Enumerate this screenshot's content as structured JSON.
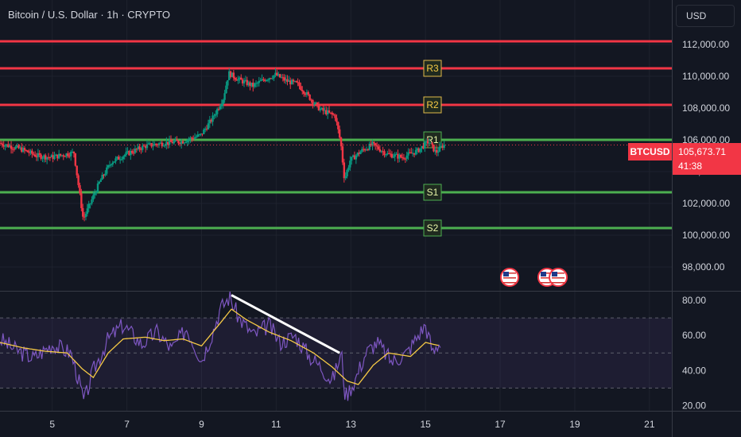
{
  "header": {
    "title": "Bitcoin / U.S. Dollar · 1h · CRYPTO",
    "currency_button": "USD"
  },
  "last_price": {
    "symbol": "BTCUSD",
    "value": "105,673.71",
    "countdown": "41:38",
    "numeric": 105673.71
  },
  "colors": {
    "background": "#131722",
    "resistance": "#f23645",
    "support": "#4caf50",
    "candle_up": "#089981",
    "candle_down": "#f23645",
    "rsi_line": "#7e57c2",
    "rsi_ma": "#f5c945",
    "trendline": "#ffffff"
  },
  "chart_data": [
    {
      "type": "candlestick",
      "title": "Bitcoin / U.S. Dollar · 1h · CRYPTO",
      "ylim": [
        96500,
        114800
      ],
      "xlim": [
        3.6,
        21.6
      ],
      "x_ticks": [
        "5",
        "7",
        "9",
        "11",
        "13",
        "15",
        "17",
        "19",
        "21"
      ],
      "y_ticks": [
        "98,000.00",
        "100,000.00",
        "102,000.00",
        "104,000.00",
        "106,000.00",
        "108,000.00",
        "110,000.00",
        "112,000.00"
      ],
      "levels": [
        {
          "label": "",
          "value": 112200,
          "kind": "resistance"
        },
        {
          "label": "R3",
          "value": 110500,
          "kind": "resistance"
        },
        {
          "label": "R2",
          "value": 108200,
          "kind": "resistance"
        },
        {
          "label": "R1",
          "value": 106000,
          "kind": "support"
        },
        {
          "label": "S1",
          "value": 102700,
          "kind": "support"
        },
        {
          "label": "S2",
          "value": 100450,
          "kind": "support"
        }
      ],
      "price_path": [
        {
          "x": 3.6,
          "y": 105800
        },
        {
          "x": 4.2,
          "y": 105400
        },
        {
          "x": 4.6,
          "y": 105000
        },
        {
          "x": 5.0,
          "y": 104900
        },
        {
          "x": 5.4,
          "y": 105100
        },
        {
          "x": 5.6,
          "y": 105200
        },
        {
          "x": 5.7,
          "y": 103500
        },
        {
          "x": 5.85,
          "y": 101000
        },
        {
          "x": 6.0,
          "y": 101800
        },
        {
          "x": 6.3,
          "y": 103400
        },
        {
          "x": 6.6,
          "y": 104600
        },
        {
          "x": 7.0,
          "y": 105100
        },
        {
          "x": 7.5,
          "y": 105600
        },
        {
          "x": 8.0,
          "y": 105800
        },
        {
          "x": 8.5,
          "y": 105900
        },
        {
          "x": 9.0,
          "y": 106300
        },
        {
          "x": 9.3,
          "y": 107300
        },
        {
          "x": 9.6,
          "y": 108600
        },
        {
          "x": 9.75,
          "y": 110200
        },
        {
          "x": 10.0,
          "y": 109800
        },
        {
          "x": 10.4,
          "y": 109400
        },
        {
          "x": 10.7,
          "y": 109800
        },
        {
          "x": 11.0,
          "y": 110100
        },
        {
          "x": 11.3,
          "y": 109700
        },
        {
          "x": 11.6,
          "y": 109500
        },
        {
          "x": 11.9,
          "y": 108700
        },
        {
          "x": 12.2,
          "y": 107900
        },
        {
          "x": 12.6,
          "y": 107500
        },
        {
          "x": 12.75,
          "y": 105800
        },
        {
          "x": 12.85,
          "y": 103500
        },
        {
          "x": 13.0,
          "y": 104700
        },
        {
          "x": 13.3,
          "y": 105300
        },
        {
          "x": 13.6,
          "y": 105700
        },
        {
          "x": 14.0,
          "y": 105100
        },
        {
          "x": 14.4,
          "y": 104900
        },
        {
          "x": 14.8,
          "y": 105300
        },
        {
          "x": 15.1,
          "y": 105900
        },
        {
          "x": 15.3,
          "y": 105200
        },
        {
          "x": 15.5,
          "y": 105670
        }
      ]
    },
    {
      "type": "line",
      "title": "",
      "ylim": [
        17,
        85
      ],
      "y_ticks": [
        "20.00",
        "40.00",
        "60.00",
        "80.00"
      ],
      "bands": [
        30,
        50,
        70
      ],
      "series": [
        {
          "values": [
            {
              "x": 3.6,
              "y": 58
            },
            {
              "x": 4.0,
              "y": 52
            },
            {
              "x": 4.5,
              "y": 47
            },
            {
              "x": 5.0,
              "y": 55
            },
            {
              "x": 5.5,
              "y": 50
            },
            {
              "x": 5.7,
              "y": 35
            },
            {
              "x": 5.85,
              "y": 22
            },
            {
              "x": 6.1,
              "y": 40
            },
            {
              "x": 6.5,
              "y": 58
            },
            {
              "x": 6.9,
              "y": 66
            },
            {
              "x": 7.4,
              "y": 55
            },
            {
              "x": 7.8,
              "y": 62
            },
            {
              "x": 8.2,
              "y": 52
            },
            {
              "x": 8.6,
              "y": 64
            },
            {
              "x": 9.0,
              "y": 46
            },
            {
              "x": 9.3,
              "y": 62
            },
            {
              "x": 9.5,
              "y": 75
            },
            {
              "x": 9.75,
              "y": 82
            },
            {
              "x": 10.0,
              "y": 70
            },
            {
              "x": 10.4,
              "y": 60
            },
            {
              "x": 10.8,
              "y": 66
            },
            {
              "x": 11.1,
              "y": 56
            },
            {
              "x": 11.5,
              "y": 60
            },
            {
              "x": 11.9,
              "y": 48
            },
            {
              "x": 12.2,
              "y": 42
            },
            {
              "x": 12.5,
              "y": 34
            },
            {
              "x": 12.75,
              "y": 50
            },
            {
              "x": 12.85,
              "y": 25
            },
            {
              "x": 13.1,
              "y": 34
            },
            {
              "x": 13.4,
              "y": 50
            },
            {
              "x": 13.7,
              "y": 56
            },
            {
              "x": 14.1,
              "y": 45
            },
            {
              "x": 14.5,
              "y": 50
            },
            {
              "x": 14.8,
              "y": 60
            },
            {
              "x": 15.0,
              "y": 66
            },
            {
              "x": 15.2,
              "y": 50
            },
            {
              "x": 15.4,
              "y": 57
            }
          ]
        },
        {
          "values": [
            {
              "x": 3.6,
              "y": 56
            },
            {
              "x": 4.2,
              "y": 53
            },
            {
              "x": 4.8,
              "y": 51
            },
            {
              "x": 5.4,
              "y": 50
            },
            {
              "x": 5.8,
              "y": 41
            },
            {
              "x": 6.1,
              "y": 36
            },
            {
              "x": 6.5,
              "y": 50
            },
            {
              "x": 6.9,
              "y": 58
            },
            {
              "x": 7.5,
              "y": 59
            },
            {
              "x": 8.0,
              "y": 57
            },
            {
              "x": 8.5,
              "y": 58
            },
            {
              "x": 9.0,
              "y": 54
            },
            {
              "x": 9.5,
              "y": 67
            },
            {
              "x": 9.8,
              "y": 75
            },
            {
              "x": 10.2,
              "y": 69
            },
            {
              "x": 10.8,
              "y": 62
            },
            {
              "x": 11.4,
              "y": 57
            },
            {
              "x": 12.0,
              "y": 50
            },
            {
              "x": 12.5,
              "y": 42
            },
            {
              "x": 12.9,
              "y": 34
            },
            {
              "x": 13.2,
              "y": 32
            },
            {
              "x": 13.6,
              "y": 43
            },
            {
              "x": 14.0,
              "y": 50
            },
            {
              "x": 14.6,
              "y": 48
            },
            {
              "x": 15.0,
              "y": 56
            },
            {
              "x": 15.4,
              "y": 54
            }
          ]
        }
      ],
      "trendline": [
        {
          "x": 9.8,
          "y": 83
        },
        {
          "x": 12.7,
          "y": 50
        }
      ]
    }
  ]
}
